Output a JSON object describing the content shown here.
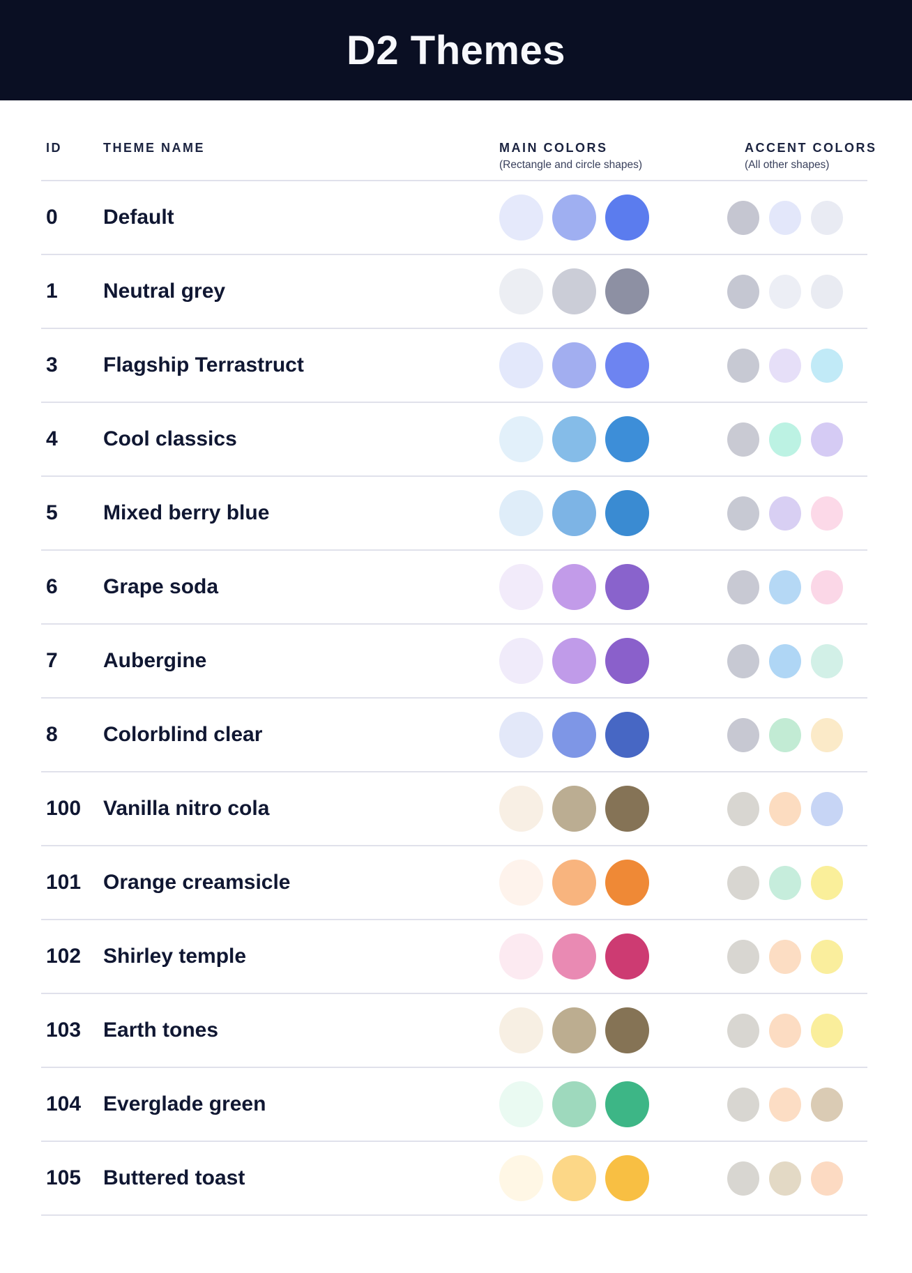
{
  "header": {
    "title": "D2 Themes"
  },
  "table": {
    "columns": {
      "id": "ID",
      "theme_name": "THEME NAME",
      "main_colors": "MAIN COLORS",
      "main_colors_sub": "(Rectangle and circle shapes)",
      "accent_colors": "ACCENT COLORS",
      "accent_colors_sub": "(All other shapes)"
    },
    "rows": [
      {
        "id": "0",
        "name": "Default",
        "main": [
          "#E5E9FB",
          "#9FAFF1",
          "#5B7CEE"
        ],
        "accent": [
          "#C5C6D1",
          "#E3E7FA",
          "#E9EBF3"
        ]
      },
      {
        "id": "1",
        "name": "Neutral grey",
        "main": [
          "#ECEEF3",
          "#CBCDD7",
          "#8D90A3"
        ],
        "accent": [
          "#C5C7D2",
          "#ECEEF5",
          "#E9EBF2"
        ]
      },
      {
        "id": "3",
        "name": "Flagship Terrastruct",
        "main": [
          "#E3E8FB",
          "#A2AEF0",
          "#6D84F1"
        ],
        "accent": [
          "#C7C9D3",
          "#E6DFF8",
          "#C1EAF7"
        ]
      },
      {
        "id": "4",
        "name": "Cool classics",
        "main": [
          "#E2F0FA",
          "#85BCE8",
          "#3D8ED8"
        ],
        "accent": [
          "#C9CAD3",
          "#BCF2E3",
          "#D5CBF4"
        ]
      },
      {
        "id": "5",
        "name": "Mixed berry blue",
        "main": [
          "#DFEDF9",
          "#7DB4E5",
          "#3A8BD2"
        ],
        "accent": [
          "#C7C9D3",
          "#D8CFF3",
          "#FCD9E8"
        ]
      },
      {
        "id": "6",
        "name": "Grape soda",
        "main": [
          "#F2EBFA",
          "#C29BE9",
          "#8963CC"
        ],
        "accent": [
          "#C8C9D3",
          "#B5D8F5",
          "#FBD7E7"
        ]
      },
      {
        "id": "7",
        "name": "Aubergine",
        "main": [
          "#F0EBFA",
          "#C09BE9",
          "#8A60CB"
        ],
        "accent": [
          "#C7C9D3",
          "#AFD6F5",
          "#D2F0E7"
        ]
      },
      {
        "id": "8",
        "name": "Colorblind clear",
        "main": [
          "#E3E8F9",
          "#7E96E6",
          "#4767C4"
        ],
        "accent": [
          "#C7C8D2",
          "#C2EBD4",
          "#FBEAC8"
        ]
      },
      {
        "id": "100",
        "name": "Vanilla nitro cola",
        "main": [
          "#F8EFE4",
          "#BBAD92",
          "#857356"
        ],
        "accent": [
          "#D8D6D1",
          "#FCDCC0",
          "#C7D5F5"
        ]
      },
      {
        "id": "101",
        "name": "Orange creamsicle",
        "main": [
          "#FEF3EC",
          "#F8B47E",
          "#EF8936"
        ],
        "accent": [
          "#D8D6D1",
          "#C6EDDC",
          "#FAEF9A"
        ]
      },
      {
        "id": "102",
        "name": "Shirley temple",
        "main": [
          "#FCEAF1",
          "#E98AB3",
          "#CD3B72"
        ],
        "accent": [
          "#D8D6D1",
          "#FCDDC3",
          "#FAEE9D"
        ]
      },
      {
        "id": "103",
        "name": "Earth tones",
        "main": [
          "#F7EFE3",
          "#BCAD90",
          "#857355"
        ],
        "accent": [
          "#D8D6D1",
          "#FCDCC2",
          "#FAEE9B"
        ]
      },
      {
        "id": "104",
        "name": "Everglade green",
        "main": [
          "#EAFAF2",
          "#9ED9BD",
          "#3DB686"
        ],
        "accent": [
          "#D8D6D1",
          "#FCDDC4",
          "#DACBB4"
        ]
      },
      {
        "id": "105",
        "name": "Buttered toast",
        "main": [
          "#FFF7E5",
          "#FCD787",
          "#F8BF43"
        ],
        "accent": [
          "#D8D6D1",
          "#E3D9C5",
          "#FCDAC2"
        ]
      }
    ]
  },
  "colors": {
    "banner_bg": "#0A0F23",
    "banner_text": "#F7F8FC",
    "row_text": "#101732",
    "divider": "#E0E1EB"
  }
}
